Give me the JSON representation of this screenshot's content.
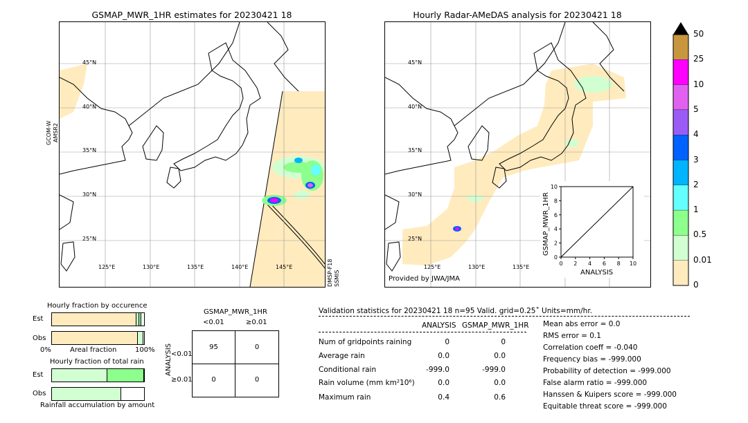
{
  "left_map": {
    "title": "GSMAP_MWR_1HR estimates for 20230421 18",
    "side_label_top": "GCOM-W",
    "side_label_top2": "AMSR2",
    "side_label_bottom": "DMSP-F18",
    "side_label_bottom2": "SSMIS",
    "lat_labels": [
      "45°N",
      "40°N",
      "35°N",
      "30°N",
      "25°N"
    ],
    "lon_labels": [
      "125°E",
      "130°E",
      "135°E",
      "140°E",
      "145°E"
    ]
  },
  "right_map": {
    "title": "Hourly Radar-AMeDAS analysis for 20230421 18",
    "lat_labels": [
      "45°N",
      "40°N",
      "35°N",
      "30°N",
      "25°N"
    ],
    "lon_labels": [
      "125°E",
      "130°E",
      "135°E"
    ],
    "credit": "Provided by JWA/JMA"
  },
  "colorbar": {
    "labels": [
      "50",
      "25",
      "10",
      "5",
      "4",
      "3",
      "2",
      "1",
      "0.5",
      "0.01",
      "0"
    ],
    "colors": [
      "#c8963c",
      "#ff00ff",
      "#e060f0",
      "#9a5cf5",
      "#0062ff",
      "#00b4ff",
      "#64ffff",
      "#8cff8c",
      "#d2ffd2",
      "#ffebbe"
    ],
    "over_color": "#000000"
  },
  "chart_data": [
    {
      "type": "scatter",
      "title": "",
      "xlabel": "ANALYSIS",
      "ylabel": "GSMAP_MWR_1HR",
      "xlim": [
        0,
        10
      ],
      "ylim": [
        0,
        10
      ],
      "xticks": [
        "0",
        "2",
        "4",
        "6",
        "8",
        "10"
      ],
      "yticks": [
        "0",
        "2",
        "4",
        "6",
        "8",
        "10"
      ],
      "diagonal": true
    },
    {
      "type": "bar",
      "title": "Hourly fraction by occurence",
      "categories": [
        "Est",
        "Obs"
      ],
      "series": [
        {
          "color": "#ffebbe",
          "values": [
            0.92,
            0.93
          ]
        },
        {
          "color": "#d2ffd2",
          "values": [
            0.03,
            0.06
          ]
        },
        {
          "color": "#8cff8c",
          "values": [
            0.02,
            0.0
          ]
        }
      ],
      "xlabel_left": "0%",
      "xlabel_mid": "Areal fraction",
      "xlabel_right": "100%"
    },
    {
      "type": "bar",
      "title": "Hourly fraction of total rain",
      "categories": [
        "Est",
        "Obs"
      ],
      "series": [
        {
          "color": "#d2ffd2",
          "values": [
            0.6,
            0.75
          ]
        },
        {
          "color": "#8cff8c",
          "values": [
            0.4,
            0.0
          ]
        }
      ],
      "xlabel": "Rainfall accumulation by amount"
    },
    {
      "type": "table",
      "title": "GSMAP_MWR_1HR",
      "col_labels": [
        "<0.01",
        "≥0.01"
      ],
      "row_labels": [
        "<0.01",
        "≥0.01"
      ],
      "row_axis": "ANALYSIS",
      "cells": [
        [
          "95",
          "0"
        ],
        [
          "0",
          "0"
        ]
      ]
    }
  ],
  "stats": {
    "header": "Validation statistics for 20230421 18  n=95 Valid. grid=0.25˚ Units=mm/hr.",
    "col_analysis": "ANALYSIS",
    "col_gsmap": "GSMAP_MWR_1HR",
    "rows": [
      {
        "label": "Num of gridpoints raining",
        "analysis": "0",
        "gsmap": "0"
      },
      {
        "label": "Average rain",
        "analysis": "0.0",
        "gsmap": "0.0"
      },
      {
        "label": "Conditional rain",
        "analysis": "-999.0",
        "gsmap": "-999.0"
      },
      {
        "label": "Rain volume (mm km²10⁶)",
        "analysis": "0.0",
        "gsmap": "0.0"
      },
      {
        "label": "Maximum rain",
        "analysis": "0.4",
        "gsmap": "0.6"
      }
    ],
    "scores": [
      "Mean abs error =    0.0",
      "RMS error =    0.1",
      "Correlation coeff = -0.040",
      "Frequency bias = -999.000",
      "Probability of detection = -999.000",
      "False alarm ratio = -999.000",
      "Hanssen & Kuipers score = -999.000",
      "Equitable threat score = -999.000"
    ]
  }
}
